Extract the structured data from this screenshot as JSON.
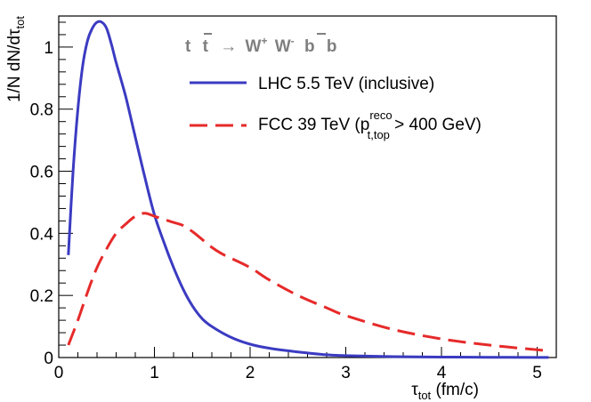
{
  "chart_data": {
    "type": "line",
    "title": "",
    "process_label": {
      "t": "t",
      "tbar": "t",
      "arrow": "→",
      "w1": "W",
      "w1_sup": "+",
      "w2": "W",
      "w2_sup": "-",
      "b": "b",
      "bbar": "b"
    },
    "xlabel": {
      "base": "τ",
      "sub": "tot",
      "unit": " (fm/c)"
    },
    "ylabel": {
      "prefix": "1/N dN/dτ",
      "sub": "tot"
    },
    "xlim": [
      0,
      5.2
    ],
    "ylim": [
      0,
      1.1
    ],
    "x_ticks": [
      "0",
      "1",
      "2",
      "3",
      "4",
      "5"
    ],
    "x_tick_values": [
      0,
      1,
      2,
      3,
      4,
      5
    ],
    "y_ticks": [
      "0",
      "0.2",
      "0.4",
      "0.6",
      "0.8",
      "1"
    ],
    "y_tick_values": [
      0,
      0.2,
      0.4,
      0.6,
      0.8,
      1.0
    ],
    "series": [
      {
        "name": "LHC 5.5 TeV (inclusive)",
        "legend": {
          "text": "LHC 5.5 TeV (inclusive)"
        },
        "color": "#3b3bc2",
        "dash": "solid",
        "x": [
          0.1,
          0.15,
          0.2,
          0.25,
          0.3,
          0.35,
          0.4,
          0.45,
          0.5,
          0.55,
          0.6,
          0.7,
          0.8,
          0.9,
          1.0,
          1.1,
          1.2,
          1.3,
          1.4,
          1.5,
          1.6,
          1.8,
          2.0,
          2.2,
          2.5,
          2.8,
          3.0,
          3.5,
          4.0,
          4.5,
          5.0,
          5.12
        ],
        "y": [
          0.33,
          0.6,
          0.8,
          0.94,
          1.02,
          1.06,
          1.08,
          1.08,
          1.06,
          1.01,
          0.95,
          0.84,
          0.71,
          0.58,
          0.46,
          0.37,
          0.29,
          0.22,
          0.165,
          0.125,
          0.1,
          0.065,
          0.043,
          0.03,
          0.018,
          0.009,
          0.006,
          0.003,
          0.0015,
          0.0008,
          0.0004,
          0.0003
        ]
      },
      {
        "name": "FCC 39 TeV (p_t,top^reco > 400 GeV)",
        "legend": {
          "prefix": "FCC 39 TeV (p",
          "sup": "reco",
          "sub": "t,top",
          "suffix": " > 400 GeV)"
        },
        "color": "#e62a2a",
        "dash": "dashed",
        "x": [
          0.1,
          0.2,
          0.3,
          0.4,
          0.5,
          0.6,
          0.7,
          0.8,
          0.9,
          1.0,
          1.1,
          1.2,
          1.3,
          1.4,
          1.5,
          1.6,
          1.7,
          1.8,
          2.0,
          2.2,
          2.5,
          2.8,
          3.0,
          3.5,
          4.0,
          4.5,
          5.0,
          5.12
        ],
        "y": [
          0.04,
          0.12,
          0.21,
          0.29,
          0.35,
          0.4,
          0.43,
          0.455,
          0.465,
          0.455,
          0.445,
          0.435,
          0.425,
          0.405,
          0.38,
          0.355,
          0.335,
          0.32,
          0.29,
          0.25,
          0.2,
          0.16,
          0.135,
          0.09,
          0.06,
          0.04,
          0.025,
          0.022
        ]
      }
    ],
    "legend_position": "top-right",
    "grid": false
  }
}
